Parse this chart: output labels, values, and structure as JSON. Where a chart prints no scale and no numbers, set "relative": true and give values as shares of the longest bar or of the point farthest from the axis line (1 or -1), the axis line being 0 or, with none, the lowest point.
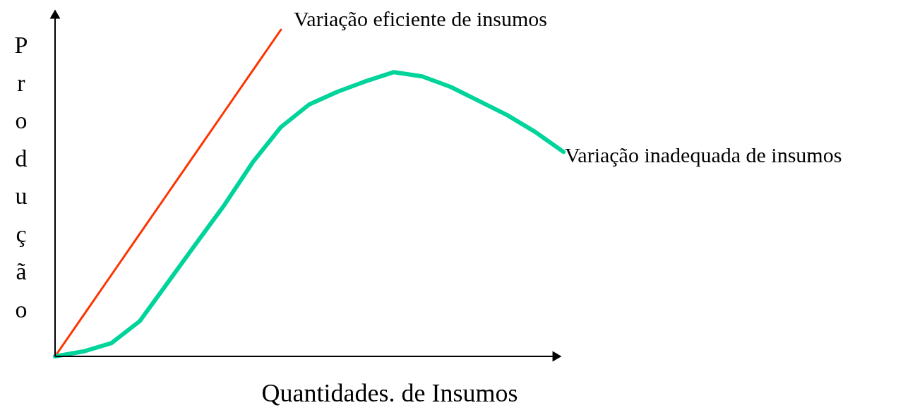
{
  "chart_data": {
    "type": "line",
    "relative": true,
    "xlabel": "Quantidades. de Insumos",
    "ylabel": "Produção",
    "categories": [
      null,
      null,
      null,
      null,
      null,
      null,
      null,
      null,
      null,
      null,
      null,
      null,
      null,
      null,
      null,
      null,
      null,
      null,
      null
    ],
    "series": [
      {
        "name": "Variação eficiente de insumos",
        "color": "#ff3300",
        "values": [
          0,
          0.125,
          0.25,
          0.375,
          0.5,
          0.625,
          0.75,
          0.875,
          1,
          null,
          null,
          null,
          null,
          null,
          null,
          null,
          null,
          null,
          null
        ]
      },
      {
        "name": "Variação inadequada de insumos",
        "color": "#00d49a",
        "values": [
          0,
          0.015,
          0.041,
          0.108,
          0.227,
          0.346,
          0.464,
          0.594,
          0.702,
          0.771,
          0.81,
          0.842,
          0.87,
          0.857,
          0.825,
          0.782,
          0.739,
          0.687,
          0.626
        ]
      }
    ]
  }
}
